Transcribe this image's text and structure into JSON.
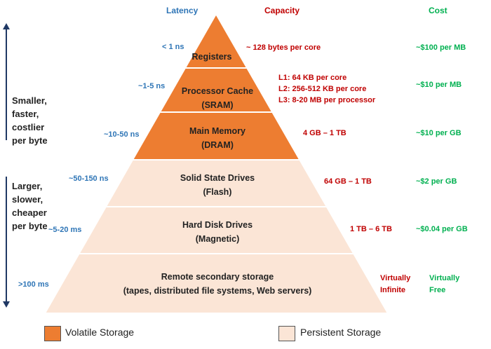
{
  "headers": {
    "latency": "Latency",
    "capacity": "Capacity",
    "cost": "Cost"
  },
  "colors": {
    "volatile": "#ed7d31",
    "persistent": "#fbe5d6",
    "latency": "#2e75b6",
    "capacity": "#c00000",
    "cost": "#00b050"
  },
  "left_labels": {
    "top": [
      "Smaller,",
      "faster,",
      "costlier",
      "per byte"
    ],
    "bottom": [
      "Larger,",
      "slower,",
      "cheaper",
      "per byte"
    ]
  },
  "levels": [
    {
      "name": [
        "Registers"
      ],
      "latency": "< 1 ns",
      "capacity": [
        "~ 128 bytes per core"
      ],
      "cost": [
        "~$100 per MB"
      ],
      "storage": "volatile"
    },
    {
      "name": [
        "Processor Cache",
        "(SRAM)"
      ],
      "latency": "~1-5 ns",
      "capacity": [
        "L1: 64 KB per core",
        "L2:  256-512 KB per core",
        "L3: 8-20 MB per processor"
      ],
      "cost": [
        "~$10 per MB"
      ],
      "storage": "volatile"
    },
    {
      "name": [
        "Main Memory",
        "(DRAM)"
      ],
      "latency": "~10-50 ns",
      "capacity": [
        "4 GB – 1 TB"
      ],
      "cost": [
        "~$10 per GB"
      ],
      "storage": "volatile"
    },
    {
      "name": [
        "Solid State Drives",
        "(Flash)"
      ],
      "latency": "~50-150 ns",
      "capacity": [
        "64 GB – 1 TB"
      ],
      "cost": [
        "~$2 per GB"
      ],
      "storage": "persistent"
    },
    {
      "name": [
        "Hard Disk Drives",
        "(Magnetic)"
      ],
      "latency": "~5-20 ms",
      "capacity": [
        "1 TB – 6 TB"
      ],
      "cost": [
        "~$0.04 per GB"
      ],
      "storage": "persistent"
    },
    {
      "name": [
        "Remote secondary storage",
        "(tapes, distributed file systems, Web servers)"
      ],
      "latency": ">100 ms",
      "capacity": [
        "Virtually",
        "Infinite"
      ],
      "cost": [
        "Virtually",
        "Free"
      ],
      "storage": "persistent"
    }
  ],
  "legend": {
    "volatile": "Volatile Storage",
    "persistent": "Persistent Storage"
  }
}
